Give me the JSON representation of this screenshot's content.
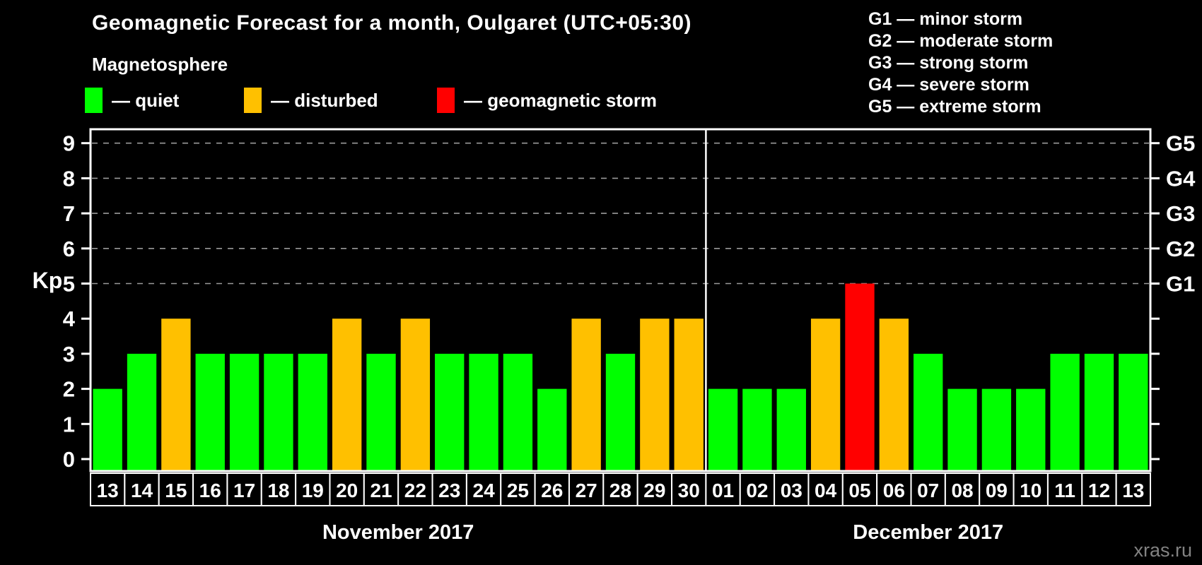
{
  "title": "Geomagnetic Forecast for a month, Oulgaret (UTC+05:30)",
  "subtitle": "Magnetosphere",
  "legend": {
    "items": [
      {
        "label": "— quiet",
        "color": "#00FF00",
        "status": "quiet"
      },
      {
        "label": "— disturbed",
        "color": "#FFC000",
        "status": "disturbed"
      },
      {
        "label": "— geomagnetic storm",
        "color": "#FF0000",
        "status": "storm"
      }
    ]
  },
  "storm_scale": [
    "G1 — minor storm",
    "G2 — moderate storm",
    "G3 — strong storm",
    "G4 — severe storm",
    "G5 — extreme storm"
  ],
  "watermark": "xras.ru",
  "chart_data": {
    "type": "bar",
    "title": "Geomagnetic Forecast for a month, Oulgaret (UTC+05:30)",
    "ylabel": "Kp",
    "ylim": [
      0,
      9
    ],
    "yticks": [
      0,
      1,
      2,
      3,
      4,
      5,
      6,
      7,
      8,
      9
    ],
    "gridlines": {
      "values": [
        5,
        6,
        7,
        8,
        9
      ],
      "style": "dashed"
    },
    "right_axis_labels": [
      {
        "value": 5,
        "label": "G1"
      },
      {
        "value": 6,
        "label": "G2"
      },
      {
        "value": 7,
        "label": "G3"
      },
      {
        "value": 8,
        "label": "G4"
      },
      {
        "value": 9,
        "label": "G5"
      }
    ],
    "status_colors": {
      "quiet": "#00FF00",
      "disturbed": "#FFC000",
      "storm": "#FF0000"
    },
    "series": [
      {
        "month": "November 2017",
        "categories": [
          "13",
          "14",
          "15",
          "16",
          "17",
          "18",
          "19",
          "20",
          "21",
          "22",
          "23",
          "24",
          "25",
          "26",
          "27",
          "28",
          "29",
          "30"
        ],
        "values": [
          2,
          3,
          4,
          3,
          3,
          3,
          3,
          4,
          3,
          4,
          3,
          3,
          3,
          2,
          4,
          3,
          4,
          4
        ],
        "statuses": [
          "quiet",
          "quiet",
          "disturbed",
          "quiet",
          "quiet",
          "quiet",
          "quiet",
          "disturbed",
          "quiet",
          "disturbed",
          "quiet",
          "quiet",
          "quiet",
          "quiet",
          "disturbed",
          "quiet",
          "disturbed",
          "disturbed"
        ]
      },
      {
        "month": "December 2017",
        "categories": [
          "01",
          "02",
          "03",
          "04",
          "05",
          "06",
          "07",
          "08",
          "09",
          "10",
          "11",
          "12",
          "13"
        ],
        "values": [
          2,
          2,
          2,
          4,
          5,
          4,
          3,
          2,
          2,
          2,
          3,
          3,
          3
        ],
        "statuses": [
          "quiet",
          "quiet",
          "quiet",
          "disturbed",
          "storm",
          "disturbed",
          "quiet",
          "quiet",
          "quiet",
          "quiet",
          "quiet",
          "quiet",
          "quiet"
        ]
      }
    ]
  }
}
